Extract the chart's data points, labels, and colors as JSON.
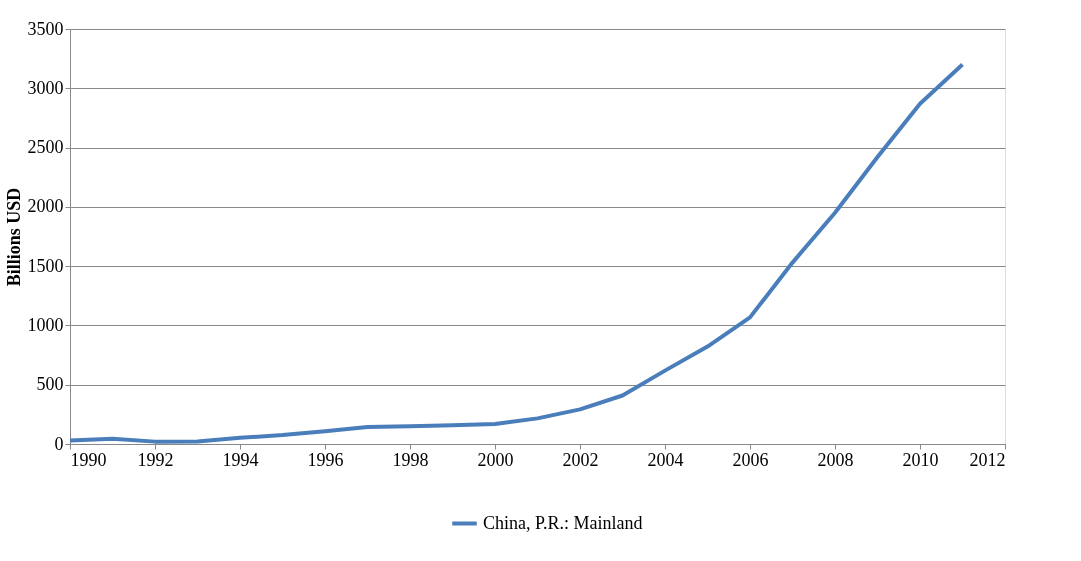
{
  "chart_data": {
    "type": "line",
    "ylabel": "Billions USD",
    "x": [
      1990,
      1991,
      1992,
      1993,
      1994,
      1995,
      1996,
      1997,
      1998,
      1999,
      2000,
      2001,
      2002,
      2003,
      2004,
      2005,
      2006,
      2007,
      2008,
      2009,
      2010,
      2011
    ],
    "series": [
      {
        "name": "China, P.R.: Mainland",
        "color": "#4a7ebb",
        "values": [
          30,
          45,
          20,
          22,
          52,
          75,
          107,
          143,
          149,
          158,
          168,
          216,
          292,
          409,
          619,
          822,
          1068,
          1530,
          1950,
          2420,
          2870,
          3200
        ]
      }
    ],
    "xlim": [
      1990,
      2012
    ],
    "xticks": [
      1990,
      1992,
      1994,
      1996,
      1998,
      2000,
      2002,
      2004,
      2006,
      2008,
      2010,
      2012
    ],
    "ylim": [
      0,
      3500
    ],
    "yticks": [
      0,
      500,
      1000,
      1500,
      2000,
      2500,
      3000,
      3500
    ],
    "grid": "y",
    "legend": "bottom",
    "marker": "none",
    "line_style": "solid"
  }
}
